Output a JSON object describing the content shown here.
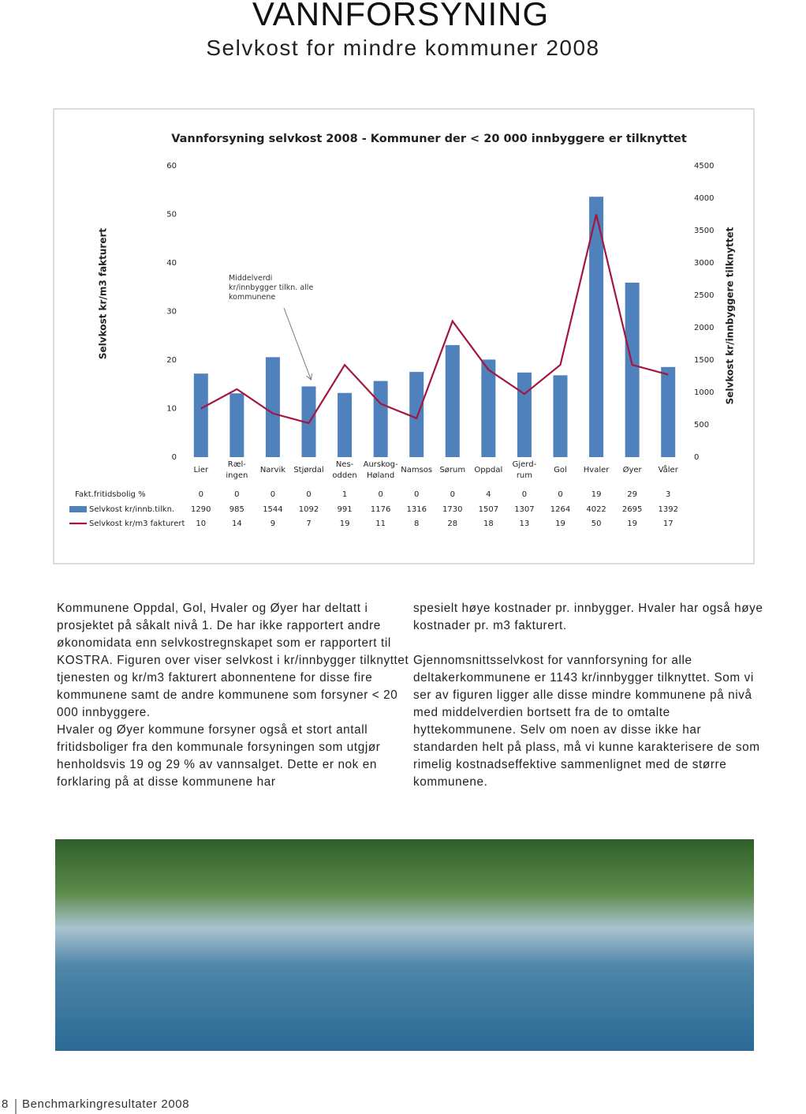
{
  "header": {
    "title": "VANNFORSYNING",
    "subtitle": "Selvkost for mindre kommuner 2008"
  },
  "chart_data": {
    "type": "bar-line",
    "title": "Vannforsyning selvkost 2008  - Kommuner der < 20 000 innbyggere er tilknyttet",
    "y_label": "Selvkost kr/m3 fakturert",
    "y2_label": "Selvkost kr/innbyggere tilknyttet",
    "annotation": "Middelverdi kr/innbygger tilkn. alle kommunene",
    "categories": [
      "Lier",
      "Ræl-\ningen",
      "Narvik",
      "Stjørdal",
      "Nes-\nodden",
      "Aurskog-\nHøland",
      "Namsos",
      "Sørum",
      "Oppdal",
      "Gjerd-\nrum",
      "Gol",
      "Hvaler",
      "Øyer",
      "Våler"
    ],
    "table_rows": [
      {
        "name": "Fakt.fritidsbolig %",
        "values": [
          0,
          0,
          0,
          0,
          1,
          0,
          0,
          0,
          4,
          0,
          0,
          19,
          29,
          3
        ]
      }
    ],
    "series": [
      {
        "name": "Selvkost kr/innb.tilkn.",
        "type": "bar",
        "axis": "y2",
        "color": "#4f81bd",
        "values": [
          1290,
          985,
          1544,
          1092,
          991,
          1176,
          1316,
          1730,
          1507,
          1307,
          1264,
          4022,
          2695,
          1392
        ]
      },
      {
        "name": "Selvkost kr/m3 fakturert",
        "type": "line",
        "axis": "y",
        "color": "#a3173f",
        "values": [
          10,
          14,
          9,
          7,
          19,
          11,
          8,
          28,
          18,
          13,
          19,
          50,
          19,
          17
        ]
      }
    ],
    "ylim": [
      0,
      60
    ],
    "yticks": [
      0,
      10,
      20,
      30,
      40,
      50,
      60
    ],
    "y2lim": [
      0,
      4500
    ],
    "y2ticks": [
      0,
      500,
      1000,
      1500,
      2000,
      2500,
      3000,
      3500,
      4000,
      4500
    ]
  },
  "body": {
    "left_column": [
      "Kommunene Oppdal, Gol, Hvaler og Øyer har deltatt i prosjektet på såkalt nivå 1. De har ikke rapportert andre økonomidata enn selvkostregnskapet som er rapportert til KOSTRA. Figuren over viser selvkost i kr/innbygger tilknyttet tjenesten og kr/m3 fakturert abonnentene for disse fire kommunene samt de andre kommunene som forsyner < 20 000 innbyggere.",
      "Hvaler og Øyer kommune forsyner også et stort antall fritidsboliger fra den kommunale forsyningen som utgjør henholdsvis 19 og 29 % av vannsalget. Dette er nok en forklaring på at disse kommunene har"
    ],
    "right_column": [
      "spesielt høye kostnader pr. innbygger. Hvaler har også høye kostnader pr. m3 fakturert.",
      "Gjennomsnittsselvkost for vannforsyning for alle deltakerkommunene er 1143 kr/innbygger tilknyttet. Som vi ser av figuren ligger alle disse mindre kommunene på nivå med middelverdien bortsett fra de to omtalte hyttekommunene. Selv om noen av disse ikke har standarden helt på plass, må vi kunne karakterisere de som rimelig kostnadseffektive sammenlignet med de større kommunene."
    ]
  },
  "footer": {
    "page": "8",
    "text": "Benchmarkingresultater 2008"
  }
}
